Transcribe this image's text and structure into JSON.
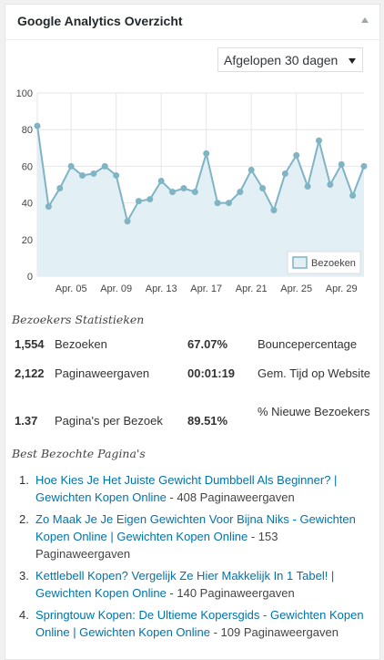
{
  "widget": {
    "title": "Google Analytics Overzicht",
    "range_selected": "Afgelopen 30 dagen"
  },
  "chart_data": {
    "type": "area",
    "series": [
      {
        "name": "Bezoeken",
        "values": [
          82,
          38,
          48,
          60,
          55,
          56,
          60,
          55,
          30,
          41,
          42,
          52,
          46,
          48,
          46,
          67,
          40,
          40,
          46,
          58,
          48,
          36,
          56,
          66,
          49,
          74,
          50,
          61,
          44,
          60
        ]
      }
    ],
    "x_tick_labels": [
      "Apr. 05",
      "Apr. 09",
      "Apr. 13",
      "Apr. 17",
      "Apr. 21",
      "Apr. 25",
      "Apr. 29"
    ],
    "x_tick_index": [
      3,
      7,
      11,
      15,
      19,
      23,
      27
    ],
    "y_ticks": [
      0,
      20,
      40,
      60,
      80,
      100
    ],
    "ylim": [
      0,
      100
    ],
    "grid": true,
    "legend_position": "bottom-right",
    "colors": {
      "line": "#7fb4c4",
      "fill": "#e2eff4",
      "grid": "#e6e6e6"
    }
  },
  "stats": {
    "title": "Bezoekers Statistieken",
    "rows": [
      {
        "v1": "1,554",
        "l1": "Bezoeken",
        "v2": "67.07%",
        "l2": "Bouncepercentage"
      },
      {
        "v1": "2,122",
        "l1": "Paginaweergaven",
        "v2": "00:01:19",
        "l2": "Gem. Tijd op Website"
      },
      {
        "v1": "1.37",
        "l1": "Pagina's per Bezoek",
        "v2": "89.51%",
        "l2": "% Nieuwe Bezoekers"
      }
    ]
  },
  "top_pages": {
    "title": "Best Bezochte Pagina's",
    "items": [
      {
        "num": "1.",
        "title": "Hoe Kies Je Het Juiste Gewicht Dumbbell Als Beginner? | Gewichten Kopen Online",
        "views": " - 408 Paginaweergaven"
      },
      {
        "num": "2.",
        "title": "Zo Maak Je Je Eigen Gewichten Voor Bijna Niks - Gewichten Kopen Online | Gewichten Kopen Online",
        "views": " - 153 Paginaweergaven"
      },
      {
        "num": "3.",
        "title": "Kettlebell Kopen? Vergelijk Ze Hier Makkelijk In 1 Tabel! | Gewichten Kopen Online",
        "views": " - 140 Paginaweergaven"
      },
      {
        "num": "4.",
        "title": "Springtouw Kopen: De Ultieme Kopersgids - Gewichten Kopen Online | Gewichten Kopen Online",
        "views": " - 109 Paginaweergaven"
      }
    ]
  }
}
